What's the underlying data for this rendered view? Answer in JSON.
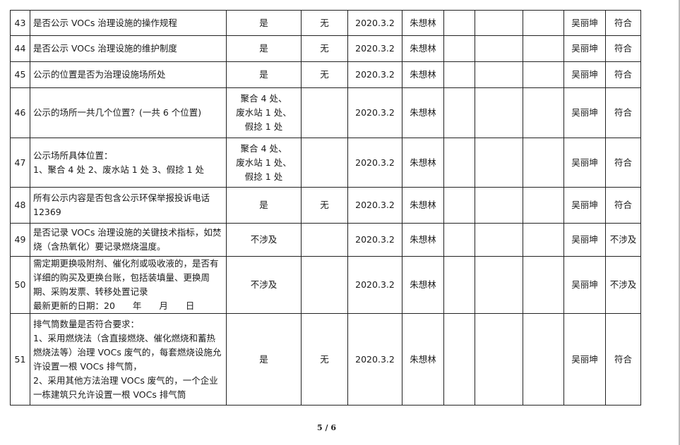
{
  "rows": [
    {
      "no": "43",
      "item": [
        "是否公示 VOCs 治理设施的操作规程"
      ],
      "result": [
        "是"
      ],
      "problem": "无",
      "date": "2020.3.2",
      "inspector": "朱想林",
      "reviewer": "吴丽坤",
      "conclusion": "符合"
    },
    {
      "no": "44",
      "item": [
        "是否公示 VOCs 治理设施的维护制度"
      ],
      "result": [
        "是"
      ],
      "problem": "无",
      "date": "2020.3.2",
      "inspector": "朱想林",
      "reviewer": "吴丽坤",
      "conclusion": "符合"
    },
    {
      "no": "45",
      "item": [
        "公示的位置是否为治理设施场所处"
      ],
      "result": [
        "是"
      ],
      "problem": "无",
      "date": "2020.3.2",
      "inspector": "朱想林",
      "reviewer": "吴丽坤",
      "conclusion": "符合"
    },
    {
      "no": "46",
      "item": [
        "公示的场所一共几个位置？(一共 6 个位置)"
      ],
      "result": [
        "聚合 4 处、",
        "废水站 1 处、",
        "假捻 1 处"
      ],
      "problem": "",
      "date": "2020.3.2",
      "inspector": "朱想林",
      "reviewer": "吴丽坤",
      "conclusion": "符合"
    },
    {
      "no": "47",
      "item": [
        "公示场所具体位置：",
        "1、聚合 4 处 2、废水站 1 处 3、假捻 1 处"
      ],
      "result": [
        "聚合 4 处、",
        "废水站 1 处、",
        "假捻 1 处"
      ],
      "problem": "",
      "date": "2020.3.2",
      "inspector": "朱想林",
      "reviewer": "吴丽坤",
      "conclusion": "符合"
    },
    {
      "no": "48",
      "item": [
        "所有公示内容是否包含公示环保举报投诉电话 12369"
      ],
      "result": [
        "是"
      ],
      "problem": "无",
      "date": "2020.3.2",
      "inspector": "朱想林",
      "reviewer": "吴丽坤",
      "conclusion": "符合"
    },
    {
      "no": "49",
      "item": [
        "是否记录 VOCs 治理设施的关键技术指标，如焚烧（含热氧化）要记录燃烧温度。"
      ],
      "result": [
        "不涉及"
      ],
      "problem": "",
      "date": "2020.3.2",
      "inspector": "朱想林",
      "reviewer": "吴丽坤",
      "conclusion": "不涉及"
    },
    {
      "no": "50",
      "item": [
        "需定期更换吸附剂、催化剂或吸收液的，是否有详细的购买及更换台账，包括装填量、更换周期、采购发票、转移处置记录",
        "最新更新的日期：20　　年　　月　　日"
      ],
      "result": [
        "不涉及"
      ],
      "problem": "",
      "date": "2020.3.2",
      "inspector": "朱想林",
      "reviewer": "吴丽坤",
      "conclusion": "不涉及"
    },
    {
      "no": "51",
      "item": [
        "排气筒数量是否符合要求：",
        "1、采用燃烧法（含直接燃烧、催化燃烧和蓄热燃烧法等）治理 VOCs 废气的，每套燃烧设施允许设置一根 VOCs 排气筒，",
        "2、采用其他方法治理 VOCs 废气的，一个企业一栋建筑只允许设置一根 VOCs 排气筒"
      ],
      "result": [
        "是"
      ],
      "problem": "无",
      "date": "2020.3.2",
      "inspector": "朱想林",
      "reviewer": "吴丽坤",
      "conclusion": "符合"
    }
  ],
  "footer": {
    "page": "5 / 6"
  }
}
